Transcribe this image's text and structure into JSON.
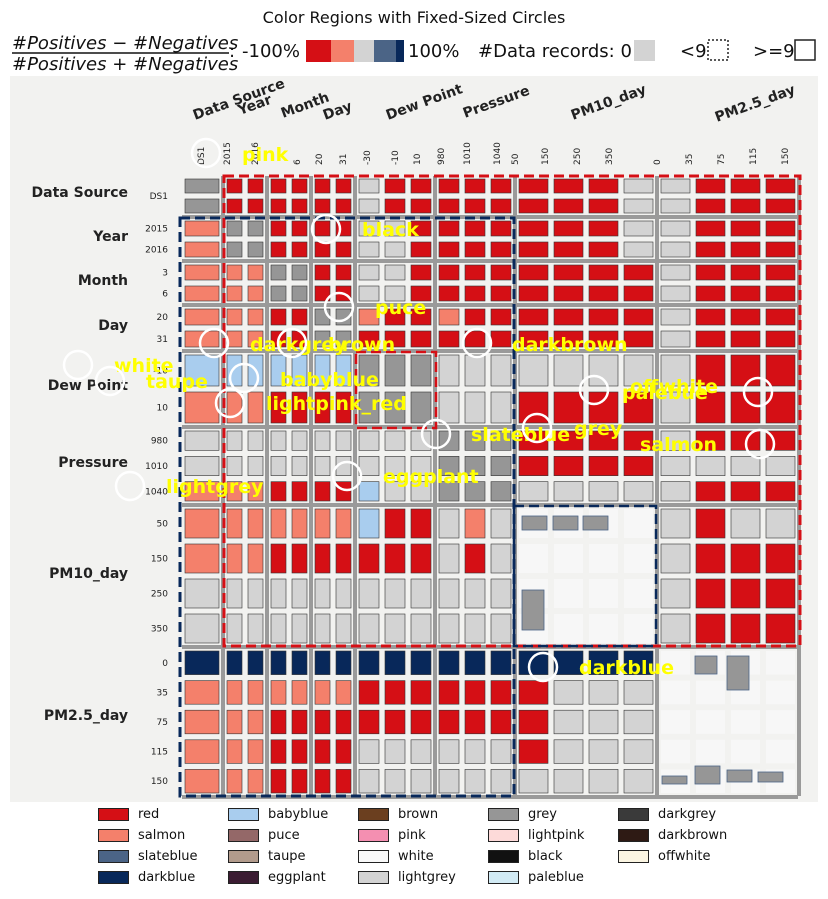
{
  "title": "Color Regions with Fixed-Sized Circles",
  "header": {
    "formula_numerator": "#Positives − #Negatives",
    "formula_denominator": "#Positives + #Negatives",
    "colon": ":",
    "min_label": "-100%",
    "max_label": "100%",
    "records_label": "#Data records: 0",
    "lt_label": "<9",
    "ge_label": ">=9"
  },
  "chart_data": {
    "type": "heatmap",
    "title": "Color Regions with Fixed-Sized Circles",
    "variables": [
      "Data Source",
      "Year",
      "Month",
      "Day",
      "Dew Point",
      "Pressure",
      "PM10_day",
      "PM2.5_day"
    ],
    "column_axis_labels": [
      "Data Source",
      "Year",
      "Month",
      "Day",
      "Dew Point",
      "Pressure",
      "PM10_day",
      "PM2.5_day"
    ],
    "column_ticks": [
      "DS1",
      "2015",
      "2016",
      "6",
      "20",
      "31",
      "-30",
      "-10",
      "10",
      "980",
      "1010",
      "1040",
      "50",
      "150",
      "250",
      "350",
      "0",
      "35",
      "75",
      "115",
      "150"
    ],
    "row_tick_groups": [
      [
        "DS1"
      ],
      [
        "2015",
        "2016"
      ],
      [
        "3",
        "6"
      ],
      [
        "20",
        "31"
      ],
      [
        "-10",
        "10"
      ],
      [
        "980",
        "1010",
        "1040"
      ],
      [
        "50",
        "150",
        "250",
        "350"
      ],
      [
        "0",
        "35",
        "75",
        "115",
        "150"
      ]
    ],
    "row_bins": [
      2,
      2,
      2,
      2,
      2,
      3,
      4,
      5
    ],
    "col_bins": [
      1,
      2,
      2,
      2,
      3,
      3,
      4,
      4
    ],
    "region_labels": [
      {
        "text": "pink",
        "circle": true
      },
      {
        "text": "black",
        "circle": true
      },
      {
        "text": "puce",
        "circle": true
      },
      {
        "text": "darkgrey",
        "circle": true
      },
      {
        "text": "brown",
        "circle": true
      },
      {
        "text": "darkbrown",
        "circle": true
      },
      {
        "text": "white",
        "circle": true
      },
      {
        "text": "taupe",
        "circle": true
      },
      {
        "text": "babyblue",
        "circle": true
      },
      {
        "text": "lightpink_red",
        "circle": true
      },
      {
        "text": "palebue",
        "circle": true
      },
      {
        "text": "offwhite",
        "circle": true
      },
      {
        "text": "slateblue",
        "circle": true
      },
      {
        "text": "grey",
        "circle": true
      },
      {
        "text": "salmon",
        "circle": true
      },
      {
        "text": "lightgrey",
        "circle": true
      },
      {
        "text": "eggplant",
        "circle": true
      },
      {
        "text": "darkblue",
        "circle": true
      }
    ],
    "legend": [
      {
        "name": "red",
        "color": "#d50f15"
      },
      {
        "name": "salmon",
        "color": "#f4806b"
      },
      {
        "name": "slateblue",
        "color": "#4b6486"
      },
      {
        "name": "darkblue",
        "color": "#08285a"
      },
      {
        "name": "babyblue",
        "color": "#a9cdee"
      },
      {
        "name": "puce",
        "color": "#946868"
      },
      {
        "name": "taupe",
        "color": "#b29b8c"
      },
      {
        "name": "eggplant",
        "color": "#3b1c32"
      },
      {
        "name": "brown",
        "color": "#6b3f1f"
      },
      {
        "name": "pink",
        "color": "#f48fb1"
      },
      {
        "name": "white",
        "color": "#f9f9f9"
      },
      {
        "name": "lightgrey",
        "color": "#d3d3d3"
      },
      {
        "name": "grey",
        "color": "#969696"
      },
      {
        "name": "lightpink",
        "color": "#fddad9"
      },
      {
        "name": "black",
        "color": "#111111"
      },
      {
        "name": "paleblue",
        "color": "#d2ebf5"
      },
      {
        "name": "darkgrey",
        "color": "#3a3a3a"
      },
      {
        "name": "darkbrown",
        "color": "#2e1a14"
      },
      {
        "name": "offwhite",
        "color": "#fbf5e2"
      }
    ]
  },
  "colors": {
    "label": "#ffff00",
    "background": "#f2f2f0",
    "divider": "#9a9a9a",
    "red": "#d50f15",
    "salmon": "#f4806b",
    "slateblue": "#4b6486",
    "darkblue": "#08285a",
    "lightgrey": "#d3d3d3",
    "grey": "#969696",
    "babyblue": "#a9cdee"
  }
}
